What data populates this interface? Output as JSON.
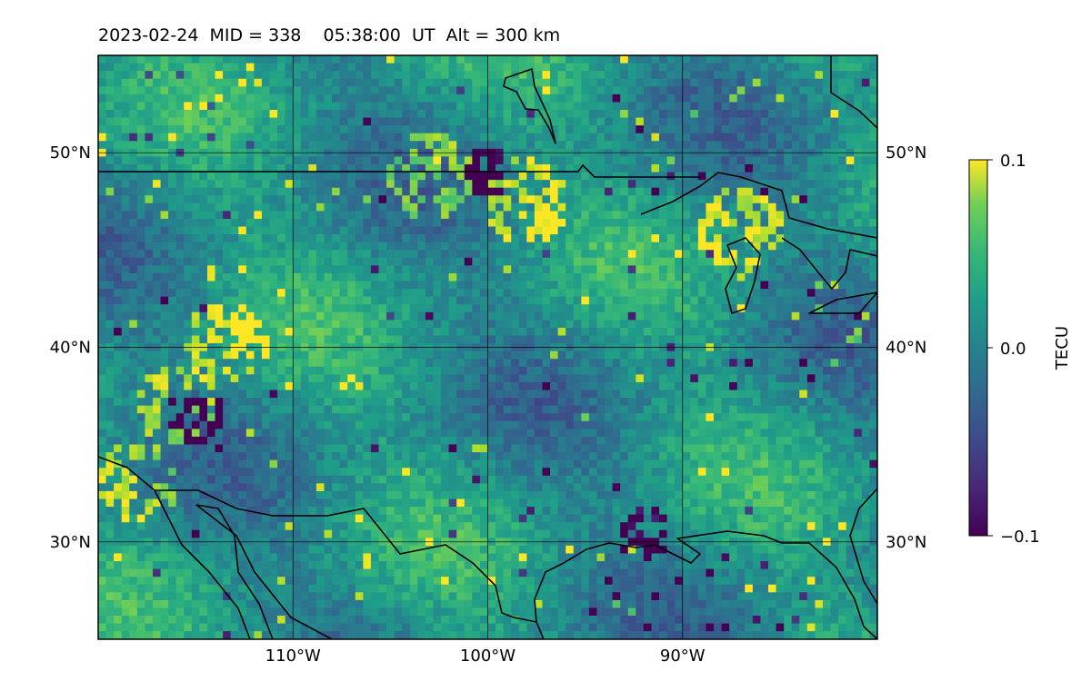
{
  "title": "2023-02-24  MID = 338    05:38:00  UT  Alt = 300 km",
  "map": {
    "extent": {
      "lon_min": -120,
      "lon_max": -80,
      "lat_min": 25,
      "lat_max": 55
    },
    "lon_ticks": [
      {
        "value": -110,
        "label": "110°W"
      },
      {
        "value": -100,
        "label": "100°W"
      },
      {
        "value": -90,
        "label": "90°W"
      }
    ],
    "lat_ticks": [
      {
        "value": 50,
        "label": "50°N"
      },
      {
        "value": 40,
        "label": "40°N"
      },
      {
        "value": 30,
        "label": "30°N"
      }
    ],
    "gridlines": true,
    "field": "differential total electron content, viridis colormap"
  },
  "colorbar": {
    "label": "TECU",
    "min": -0.1,
    "max": 0.1,
    "ticks": [
      {
        "value": 0.1,
        "label": "0.1"
      },
      {
        "value": 0.0,
        "label": "0.0"
      },
      {
        "value": -0.1,
        "label": "−0.1"
      }
    ],
    "colormap": "viridis"
  },
  "colors": {
    "coastline": "#000000",
    "gridline": "#000000",
    "field_base": "#2a8c8a"
  }
}
